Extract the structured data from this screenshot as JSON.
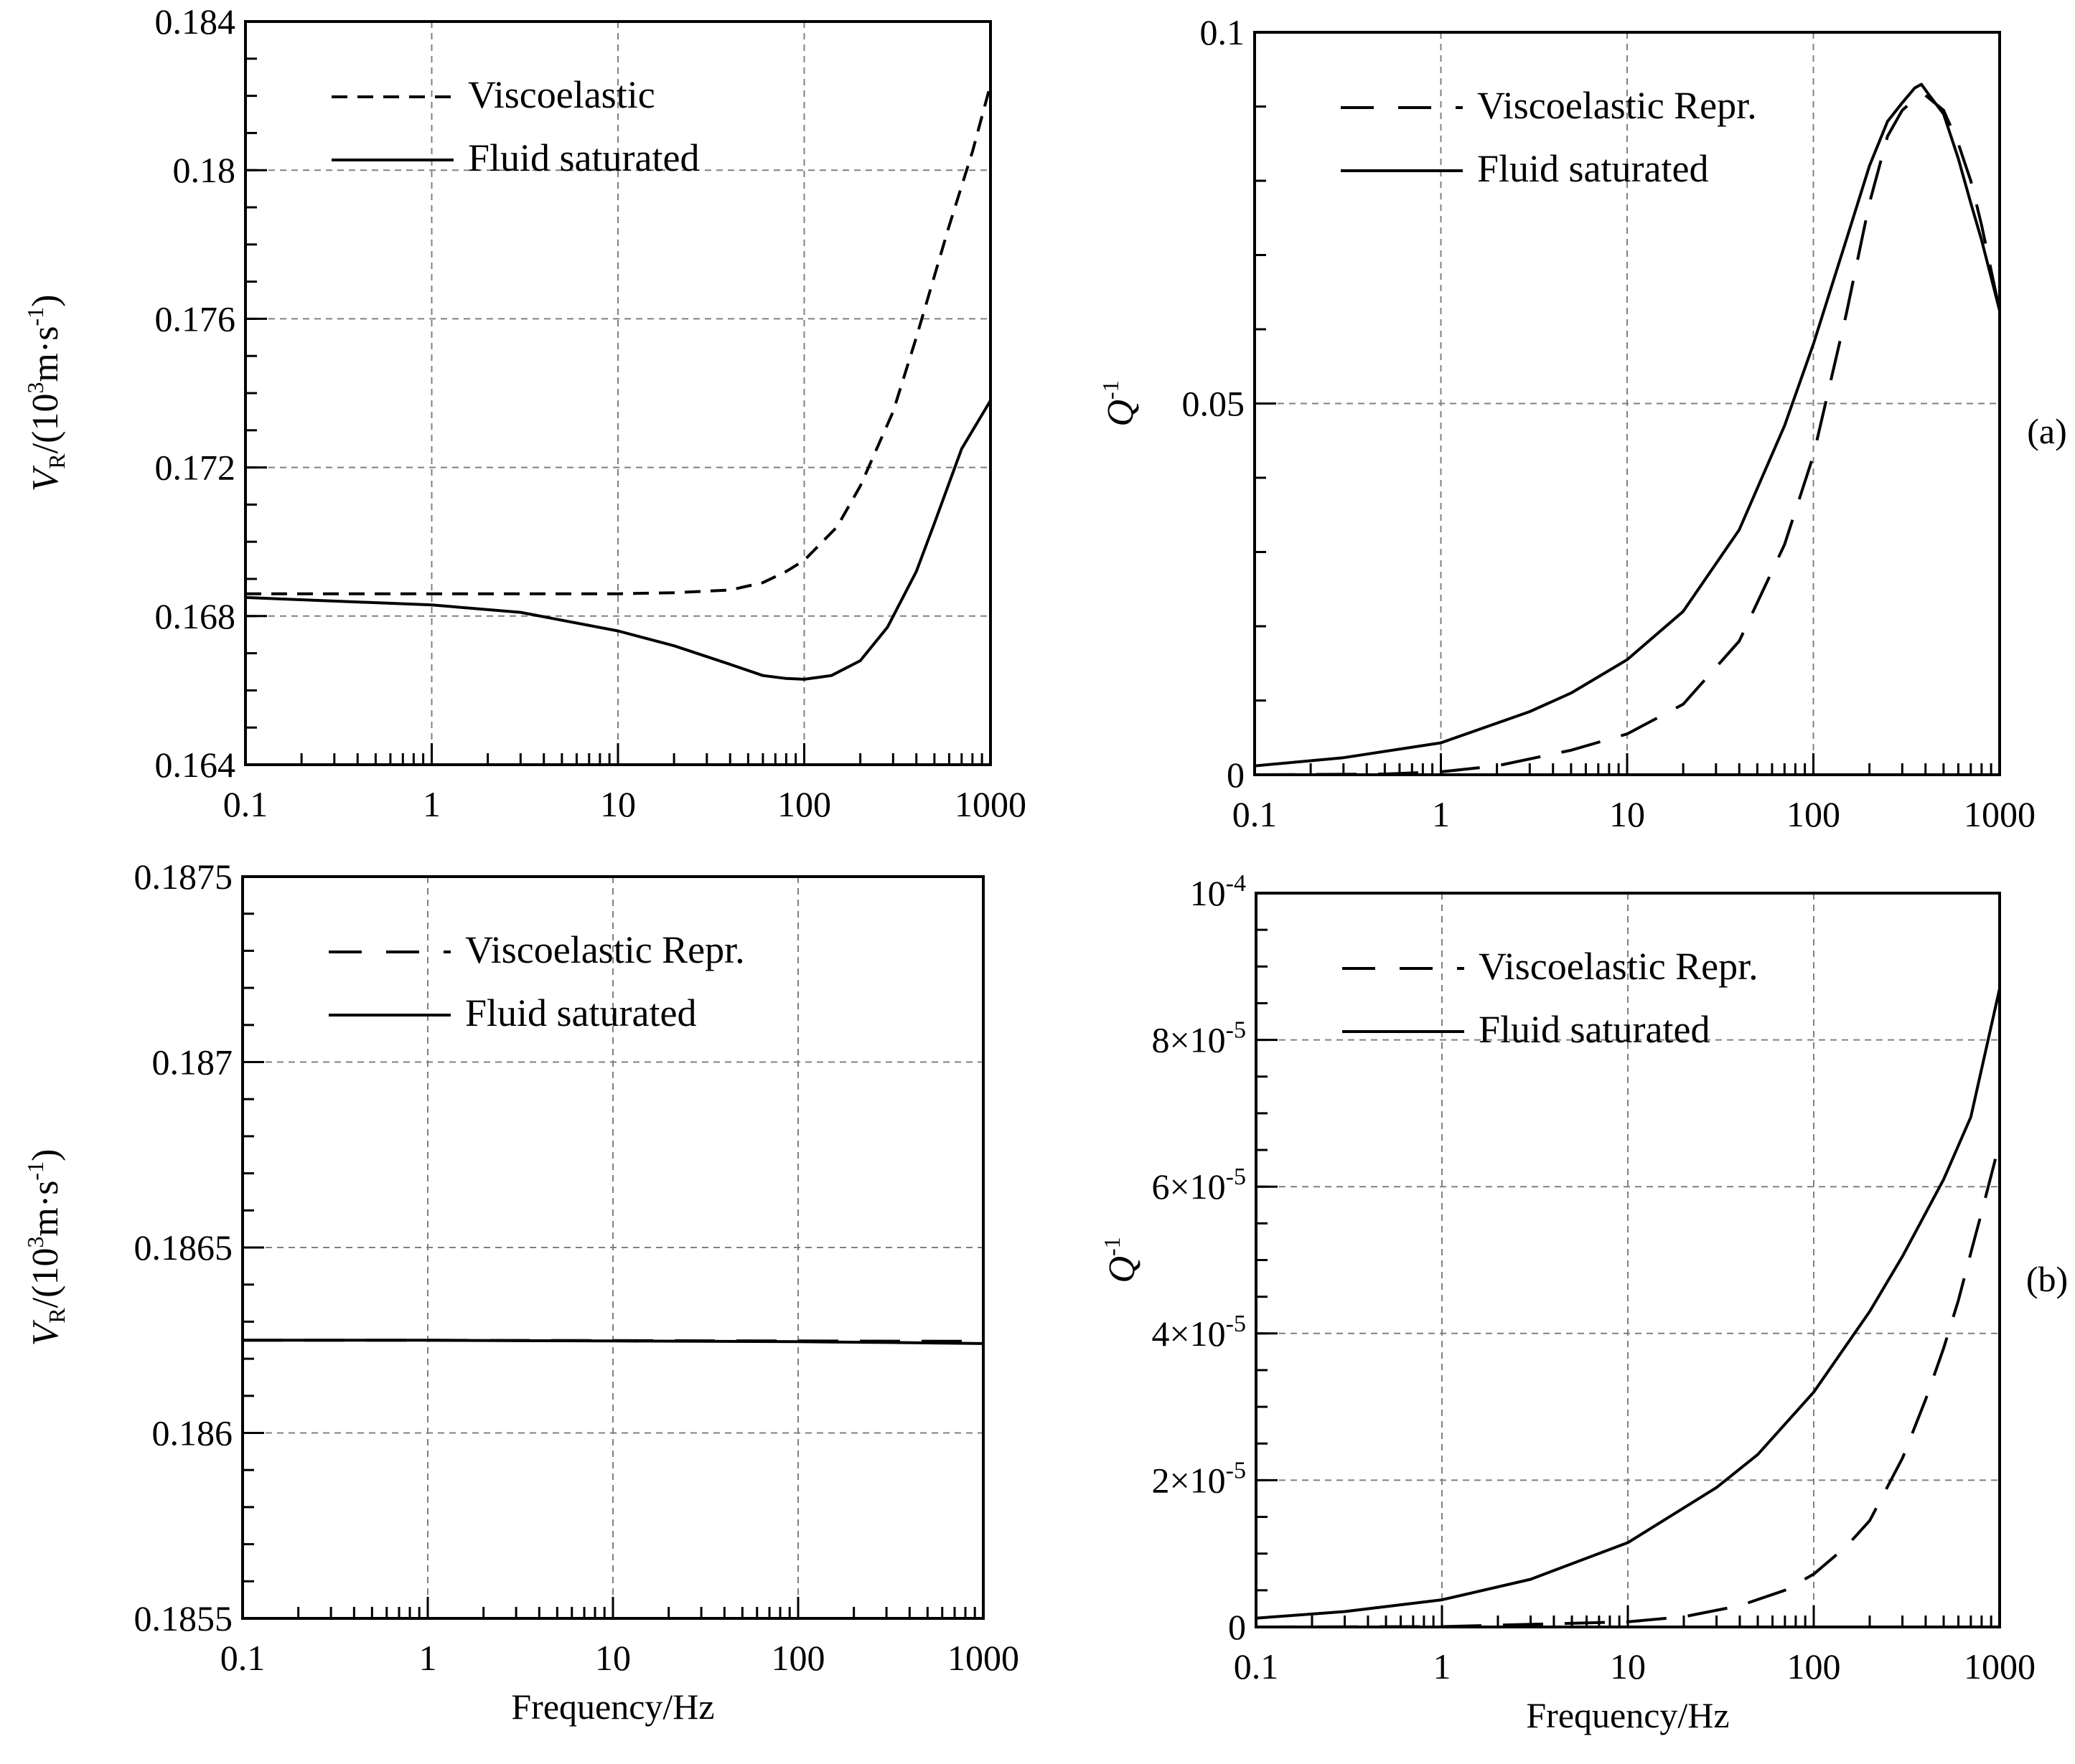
{
  "panel_labels": {
    "a": "(a)",
    "b": "(b)"
  },
  "colors": {
    "ink": "#000000",
    "grid": "#808080",
    "background": "#ffffff"
  },
  "chart_data": [
    {
      "id": "a_left",
      "type": "line",
      "xscale": "log",
      "xlim": [
        0.1,
        1000
      ],
      "ylim": [
        0.164,
        0.184
      ],
      "x_ticks": [
        0.1,
        1,
        10,
        100,
        1000
      ],
      "x_tick_labels": [
        "0.1",
        "1",
        "10",
        "100",
        "1000"
      ],
      "y_ticks": [
        0.164,
        0.168,
        0.172,
        0.176,
        0.18,
        0.184
      ],
      "y_tick_labels": [
        "0.164",
        "0.168",
        "0.172",
        "0.176",
        "0.18",
        "0.184"
      ],
      "y_minor_step": 0.001,
      "ylabel": {
        "main": "V",
        "sub": "R",
        "rest": "/(10",
        "sup": "3",
        "rest2": "m·s",
        "sup2": "-1",
        "close": ")"
      },
      "grid": true,
      "legend_position": "top-left",
      "series": [
        {
          "name": "Viscoelastic",
          "dash": "short",
          "x": [
            0.1,
            1,
            10,
            20,
            40,
            60,
            80,
            100,
            150,
            200,
            300,
            400,
            600,
            800,
            1000
          ],
          "y": [
            0.1686,
            0.1686,
            0.1686,
            0.16863,
            0.1687,
            0.1689,
            0.1692,
            0.1695,
            0.1704,
            0.1715,
            0.1735,
            0.1755,
            0.1785,
            0.1805,
            0.1823
          ]
        },
        {
          "name": "Fluid saturated",
          "dash": "solid",
          "x": [
            0.1,
            1,
            3,
            10,
            20,
            40,
            60,
            80,
            100,
            140,
            200,
            280,
            400,
            500,
            700,
            1000
          ],
          "y": [
            0.1685,
            0.1683,
            0.1681,
            0.1676,
            0.1672,
            0.1667,
            0.1664,
            0.16632,
            0.1663,
            0.1664,
            0.1668,
            0.1677,
            0.1692,
            0.1705,
            0.1725,
            0.1738
          ]
        }
      ]
    },
    {
      "id": "a_right",
      "type": "line",
      "xscale": "log",
      "xlim": [
        0.1,
        1000
      ],
      "ylim": [
        0,
        0.1
      ],
      "x_ticks": [
        0.1,
        1,
        10,
        100,
        1000
      ],
      "x_tick_labels": [
        "0.1",
        "1",
        "10",
        "100",
        "1000"
      ],
      "y_ticks": [
        0,
        0.05,
        0.1
      ],
      "y_tick_labels": [
        "0",
        "0.05",
        "0.1"
      ],
      "y_minor_step": 0.01,
      "ylabel": {
        "main": "Q",
        "sup": "-1"
      },
      "grid": true,
      "legend_position": "top-left",
      "series": [
        {
          "name": "Viscoelastic Repr.",
          "dash": "long",
          "x": [
            0.1,
            0.5,
            1,
            2,
            5,
            10,
            20,
            40,
            70,
            100,
            150,
            200,
            250,
            300,
            350,
            400,
            500,
            600,
            700,
            800,
            1000
          ],
          "y": [
            0,
            0.0001,
            0.0004,
            0.0012,
            0.0033,
            0.0055,
            0.0095,
            0.018,
            0.031,
            0.043,
            0.062,
            0.077,
            0.086,
            0.0895,
            0.091,
            0.0915,
            0.0895,
            0.085,
            0.08,
            0.074,
            0.0625
          ]
        },
        {
          "name": "Fluid saturated",
          "dash": "solid",
          "x": [
            0.1,
            0.3,
            1,
            3,
            5,
            10,
            20,
            40,
            70,
            100,
            150,
            200,
            250,
            300,
            350,
            380,
            420,
            500,
            600,
            700,
            800,
            1000
          ],
          "y": [
            0.0012,
            0.0023,
            0.0043,
            0.0085,
            0.011,
            0.0155,
            0.022,
            0.033,
            0.047,
            0.058,
            0.072,
            0.082,
            0.088,
            0.0905,
            0.0925,
            0.093,
            0.0915,
            0.089,
            0.083,
            0.077,
            0.072,
            0.0625
          ]
        }
      ]
    },
    {
      "id": "b_left",
      "type": "line",
      "xscale": "log",
      "xlim": [
        0.1,
        1000
      ],
      "ylim": [
        0.1855,
        0.1875
      ],
      "x_ticks": [
        0.1,
        1,
        10,
        100,
        1000
      ],
      "x_tick_labels": [
        "0.1",
        "1",
        "10",
        "100",
        "1000"
      ],
      "y_ticks": [
        0.1855,
        0.186,
        0.1865,
        0.187,
        0.1875
      ],
      "y_tick_labels": [
        "0.1855",
        "0.186",
        "0.1865",
        "0.187",
        "0.1875"
      ],
      "y_minor_step": 0.0001,
      "xlabel": "Frequency/Hz",
      "ylabel": {
        "main": "V",
        "sub": "R",
        "rest": "/(10",
        "sup": "3",
        "rest2": "m·s",
        "sup2": "-1",
        "close": ")"
      },
      "grid": true,
      "legend_position": "top-left",
      "series": [
        {
          "name": "Viscoelastic Repr.",
          "dash": "long",
          "x": [
            0.1,
            1,
            10,
            100,
            1000
          ],
          "y": [
            0.18625,
            0.18625,
            0.186249,
            0.186248,
            0.186247
          ]
        },
        {
          "name": "Fluid saturated",
          "dash": "solid",
          "x": [
            0.1,
            1,
            10,
            100,
            300,
            1000
          ],
          "y": [
            0.18625,
            0.18625,
            0.186248,
            0.186246,
            0.186244,
            0.186241
          ]
        }
      ]
    },
    {
      "id": "b_right",
      "type": "line",
      "xscale": "log",
      "xlim": [
        0.1,
        1000
      ],
      "ylim": [
        0,
        0.0001
      ],
      "x_ticks": [
        0.1,
        1,
        10,
        100,
        1000
      ],
      "x_tick_labels": [
        "0.1",
        "1",
        "10",
        "100",
        "1000"
      ],
      "y_ticks": [
        0,
        2e-05,
        4e-05,
        6e-05,
        8e-05,
        0.0001
      ],
      "y_tick_labels": [
        {
          "base": "0"
        },
        {
          "base": "2×10",
          "exp": "-5"
        },
        {
          "base": "4×10",
          "exp": "-5"
        },
        {
          "base": "6×10",
          "exp": "-5"
        },
        {
          "base": "8×10",
          "exp": "-5"
        },
        {
          "base": "10",
          "exp": "-4"
        }
      ],
      "y_minor_step": 5e-06,
      "xlabel": "Frequency/Hz",
      "ylabel": {
        "main": "Q",
        "sup": "-1"
      },
      "grid": true,
      "legend_position": "top-left",
      "series": [
        {
          "name": "Viscoelastic Repr.",
          "dash": "long",
          "x": [
            0.1,
            1,
            10,
            20,
            40,
            70,
            100,
            150,
            200,
            300,
            400,
            500,
            600,
            700,
            800,
            1000
          ],
          "y": [
            0,
            5e-08,
            7e-07,
            1.4e-06,
            2.9e-06,
            5e-06,
            7.2e-06,
            1.1e-05,
            1.45e-05,
            2.3e-05,
            3.1e-05,
            3.8e-05,
            4.45e-05,
            5.1e-05,
            5.65e-05,
            6.6e-05
          ]
        },
        {
          "name": "Fluid saturated",
          "dash": "solid",
          "x": [
            0.1,
            0.3,
            1,
            3,
            10,
            30,
            50,
            100,
            200,
            300,
            500,
            700,
            1000
          ],
          "y": [
            1.2e-06,
            2.1e-06,
            3.7e-06,
            6.5e-06,
            1.15e-05,
            1.9e-05,
            2.35e-05,
            3.2e-05,
            4.3e-05,
            5.05e-05,
            6.1e-05,
            6.95e-05,
            8.7e-05
          ]
        }
      ]
    }
  ]
}
